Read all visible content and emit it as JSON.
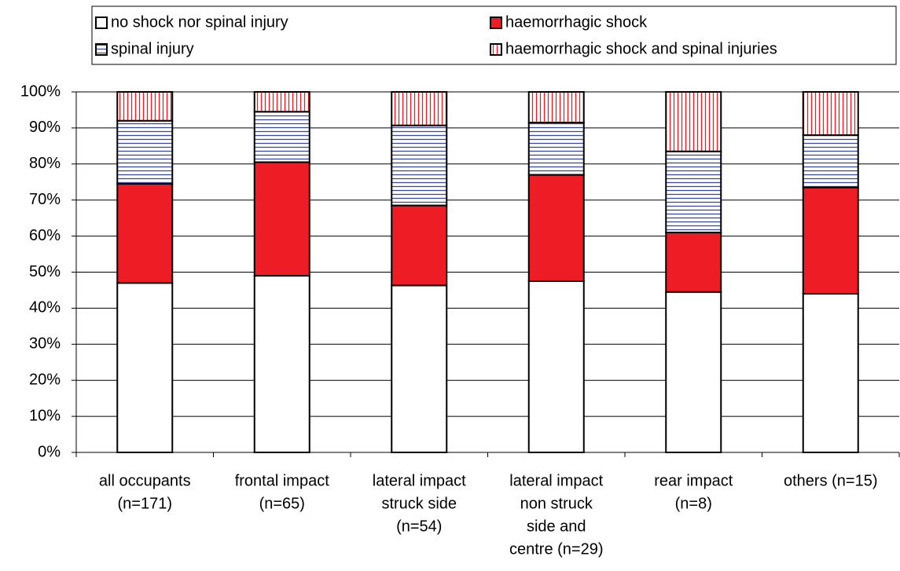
{
  "chart_data": {
    "type": "stacked_bar",
    "categories": [
      [
        "all occupants",
        "(n=171)"
      ],
      [
        "frontal impact",
        "(n=65)"
      ],
      [
        "lateral impact",
        "struck side",
        "(n=54)"
      ],
      [
        "lateral impact",
        "non struck",
        "side and",
        "centre (n=29)"
      ],
      [
        "rear impact",
        "(n=8)"
      ],
      [
        "others (n=15)"
      ]
    ],
    "series": [
      {
        "name": "no shock nor spinal injury",
        "color": "#ffffff",
        "pattern": "solid",
        "values": [
          47,
          49,
          46.3,
          47.5,
          44.5,
          44
        ]
      },
      {
        "name": "haemorrhagic shock",
        "color": "#ee1c24",
        "pattern": "solid",
        "values": [
          27.5,
          31.5,
          22.2,
          29.5,
          16.5,
          29.5
        ]
      },
      {
        "name": "spinal injury",
        "color": "#3a4a9c",
        "pattern": "horizontal",
        "values": [
          17.5,
          14,
          22.2,
          14.5,
          22.5,
          14.5
        ]
      },
      {
        "name": "haemorrhagic shock and spinal injuries",
        "color": "#ee1c24",
        "pattern": "vertical",
        "values": [
          8,
          5.5,
          9.3,
          8.5,
          16.5,
          12
        ]
      }
    ],
    "ylim": [
      0,
      100
    ],
    "yticks": [
      {
        "value": 0,
        "label": "0%"
      },
      {
        "value": 10,
        "label": "10%"
      },
      {
        "value": 20,
        "label": "20%"
      },
      {
        "value": 30,
        "label": "30%"
      },
      {
        "value": 40,
        "label": "40%"
      },
      {
        "value": 50,
        "label": "50%"
      },
      {
        "value": 60,
        "label": "60%"
      },
      {
        "value": 70,
        "label": "70%"
      },
      {
        "value": 80,
        "label": "80%"
      },
      {
        "value": 90,
        "label": "90%"
      },
      {
        "value": 100,
        "label": "100%"
      }
    ],
    "grid": true,
    "legend": "top"
  }
}
